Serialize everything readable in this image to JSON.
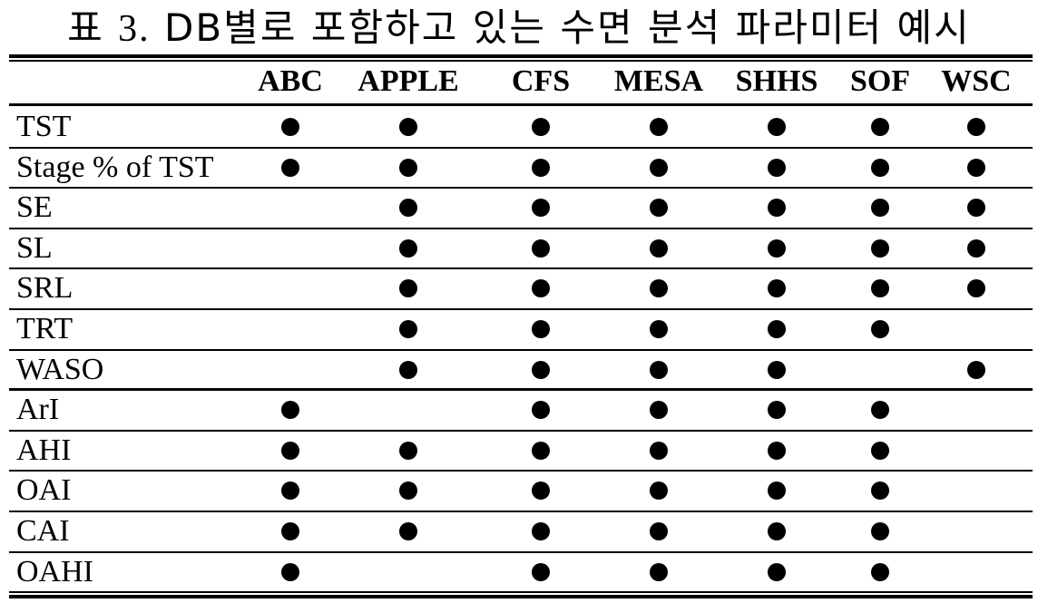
{
  "caption": {
    "prefix": "표 ",
    "number": "3.",
    "text": " DB별로 포함하고 있는 수면 분석 파라미터 예시"
  },
  "columns": [
    "ABC",
    "APPLE",
    "CFS",
    "MESA",
    "SHHS",
    "SOF",
    "WSC"
  ],
  "rows": [
    {
      "label": "TST",
      "marks": [
        1,
        1,
        1,
        1,
        1,
        1,
        1
      ]
    },
    {
      "label": "Stage % of TST",
      "marks": [
        1,
        1,
        1,
        1,
        1,
        1,
        1
      ]
    },
    {
      "label": "SE",
      "marks": [
        0,
        1,
        1,
        1,
        1,
        1,
        1
      ]
    },
    {
      "label": "SL",
      "marks": [
        0,
        1,
        1,
        1,
        1,
        1,
        1
      ]
    },
    {
      "label": "SRL",
      "marks": [
        0,
        1,
        1,
        1,
        1,
        1,
        1
      ]
    },
    {
      "label": "TRT",
      "marks": [
        0,
        1,
        1,
        1,
        1,
        1,
        0
      ]
    },
    {
      "label": "WASO",
      "marks": [
        0,
        1,
        1,
        1,
        1,
        0,
        1
      ]
    },
    {
      "label": "ArI",
      "marks": [
        1,
        0,
        1,
        1,
        1,
        1,
        0
      ]
    },
    {
      "label": "AHI",
      "marks": [
        1,
        1,
        1,
        1,
        1,
        1,
        0
      ]
    },
    {
      "label": "OAI",
      "marks": [
        1,
        1,
        1,
        1,
        1,
        1,
        0
      ]
    },
    {
      "label": "CAI",
      "marks": [
        1,
        1,
        1,
        1,
        1,
        1,
        0
      ]
    },
    {
      "label": "OAHI",
      "marks": [
        1,
        0,
        1,
        1,
        1,
        1,
        0
      ]
    }
  ],
  "mark_symbol": "●"
}
